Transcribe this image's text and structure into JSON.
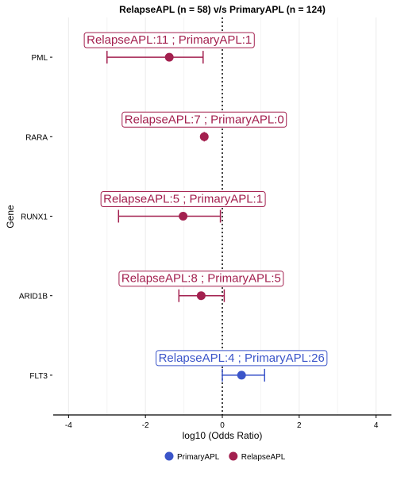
{
  "chart_data": {
    "type": "forest",
    "title": "RelapseAPL (n = 58) v/s PrimaryAPL (n = 124)",
    "xlabel": "log10 (Odds Ratio)",
    "ylabel": "Gene",
    "xlim": [
      -4.4,
      4.4
    ],
    "xticks": [
      -4,
      -2,
      0,
      2,
      4
    ],
    "reference_line": 0,
    "grid": "vertical",
    "legend_position": "bottom",
    "series": [
      {
        "name": "PrimaryAPL",
        "color": "#3b55c9"
      },
      {
        "name": "RelapseAPL",
        "color": "#a3204f"
      }
    ],
    "rows": [
      {
        "gene": "PML",
        "estimate": -1.38,
        "ci_low": -3.0,
        "ci_high": -0.5,
        "group": "RelapseAPL",
        "label": "RelapseAPL:11 ; PrimaryAPL:1"
      },
      {
        "gene": "RARA",
        "estimate": -0.47,
        "ci_low": null,
        "ci_high": null,
        "group": "RelapseAPL",
        "label": "RelapseAPL:7 ; PrimaryAPL:0"
      },
      {
        "gene": "RUNX1",
        "estimate": -1.02,
        "ci_low": -2.7,
        "ci_high": -0.05,
        "group": "RelapseAPL",
        "label": "RelapseAPL:5 ; PrimaryAPL:1"
      },
      {
        "gene": "ARID1B",
        "estimate": -0.55,
        "ci_low": -1.13,
        "ci_high": 0.05,
        "group": "RelapseAPL",
        "label": "RelapseAPL:8 ; PrimaryAPL:5"
      },
      {
        "gene": "FLT3",
        "estimate": 0.5,
        "ci_low": 0.0,
        "ci_high": 1.1,
        "group": "PrimaryAPL",
        "label": "RelapseAPL:4 ; PrimaryAPL:26"
      }
    ]
  }
}
